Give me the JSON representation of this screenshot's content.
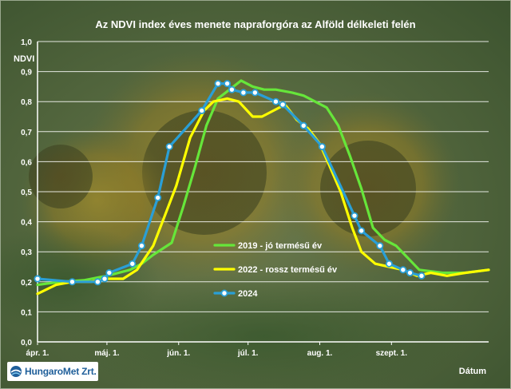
{
  "chart_data": {
    "type": "line",
    "title": "Az NDVI index éves menete napraforgóra az Alföld délkeleti felén",
    "ylabel": "NDVI",
    "xlabel": "Dátum",
    "ylim": [
      0,
      1.0
    ],
    "y_ticks": [
      "0,0",
      "0,1",
      "0,2",
      "0,3",
      "0,4",
      "0,5",
      "0,6",
      "0,7",
      "0,8",
      "0,9",
      "1,0"
    ],
    "x_ticks": [
      "ápr. 1.",
      "máj. 1.",
      "jún. 1.",
      "júl. 1.",
      "aug. 1.",
      "szept. 1."
    ],
    "x_tick_days": [
      0,
      30,
      61,
      91,
      122,
      153
    ],
    "x_range_days": [
      0,
      195
    ],
    "grid": true,
    "legend_position": "right-middle",
    "series": [
      {
        "name": "2019 - jó termésű év",
        "color": "#66e63a",
        "marker": false,
        "points": [
          [
            0,
            0.19
          ],
          [
            10,
            0.2
          ],
          [
            20,
            0.205
          ],
          [
            30,
            0.22
          ],
          [
            40,
            0.24
          ],
          [
            45,
            0.26
          ],
          [
            50,
            0.29
          ],
          [
            58,
            0.33
          ],
          [
            63,
            0.45
          ],
          [
            68,
            0.58
          ],
          [
            73,
            0.72
          ],
          [
            78,
            0.81
          ],
          [
            83,
            0.84
          ],
          [
            88,
            0.87
          ],
          [
            93,
            0.85
          ],
          [
            98,
            0.84
          ],
          [
            103,
            0.84
          ],
          [
            110,
            0.83
          ],
          [
            115,
            0.82
          ],
          [
            120,
            0.8
          ],
          [
            125,
            0.78
          ],
          [
            130,
            0.72
          ],
          [
            135,
            0.62
          ],
          [
            140,
            0.51
          ],
          [
            145,
            0.38
          ],
          [
            150,
            0.34
          ],
          [
            155,
            0.32
          ],
          [
            160,
            0.28
          ],
          [
            165,
            0.24
          ],
          [
            175,
            0.23
          ],
          [
            185,
            0.23
          ],
          [
            195,
            0.24
          ]
        ]
      },
      {
        "name": "2022 - rossz termésű év",
        "color": "#ffff00",
        "marker": false,
        "points": [
          [
            0,
            0.16
          ],
          [
            8,
            0.19
          ],
          [
            15,
            0.2
          ],
          [
            23,
            0.2
          ],
          [
            30,
            0.21
          ],
          [
            37,
            0.21
          ],
          [
            43,
            0.24
          ],
          [
            50,
            0.32
          ],
          [
            55,
            0.42
          ],
          [
            60,
            0.52
          ],
          [
            66,
            0.68
          ],
          [
            72,
            0.77
          ],
          [
            76,
            0.8
          ],
          [
            82,
            0.81
          ],
          [
            87,
            0.8
          ],
          [
            93,
            0.75
          ],
          [
            97,
            0.75
          ],
          [
            102,
            0.77
          ],
          [
            107,
            0.79
          ],
          [
            112,
            0.74
          ],
          [
            117,
            0.71
          ],
          [
            122,
            0.66
          ],
          [
            126,
            0.59
          ],
          [
            131,
            0.5
          ],
          [
            136,
            0.38
          ],
          [
            140,
            0.3
          ],
          [
            146,
            0.26
          ],
          [
            152,
            0.25
          ],
          [
            158,
            0.24
          ],
          [
            164,
            0.22
          ],
          [
            170,
            0.23
          ],
          [
            177,
            0.22
          ],
          [
            185,
            0.23
          ],
          [
            195,
            0.24
          ]
        ]
      },
      {
        "name": "2024",
        "color": "#2a9fd6",
        "marker": true,
        "points": [
          [
            0,
            0.21
          ],
          [
            15,
            0.2
          ],
          [
            26,
            0.2
          ],
          [
            29,
            0.21
          ],
          [
            31,
            0.23
          ],
          [
            41,
            0.26
          ],
          [
            45,
            0.32
          ],
          [
            52,
            0.48
          ],
          [
            57,
            0.65
          ],
          [
            71,
            0.77
          ],
          [
            78,
            0.86
          ],
          [
            82,
            0.86
          ],
          [
            84,
            0.84
          ],
          [
            89,
            0.83
          ],
          [
            94,
            0.83
          ],
          [
            103,
            0.8
          ],
          [
            106,
            0.79
          ],
          [
            115,
            0.72
          ],
          [
            123,
            0.65
          ],
          [
            137,
            0.42
          ],
          [
            140,
            0.37
          ],
          [
            148,
            0.32
          ],
          [
            152,
            0.26
          ],
          [
            158,
            0.24
          ],
          [
            161,
            0.23
          ],
          [
            166,
            0.22
          ]
        ]
      }
    ]
  },
  "logo": {
    "text": "HungaroMet Zrt."
  }
}
